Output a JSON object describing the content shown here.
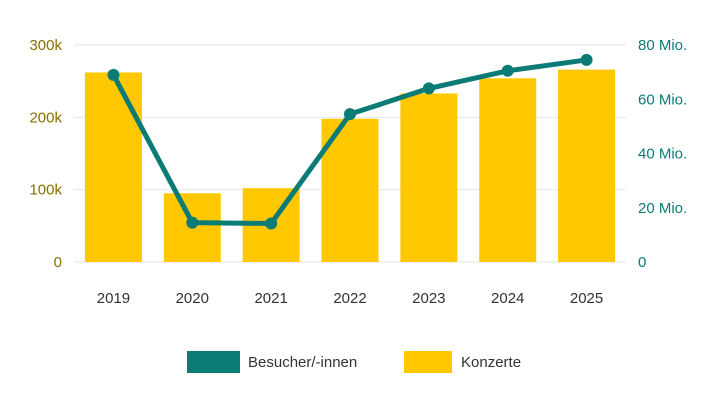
{
  "colors": {
    "bars": "#ffc800",
    "line": "#0b7b75",
    "left_axis_text": "#8a6d00",
    "right_axis_text": "#0b7b75",
    "grid": "#e6e6e6"
  },
  "chart_data": {
    "type": "bar",
    "categories": [
      "2019",
      "2020",
      "2021",
      "2022",
      "2023",
      "2024",
      "2025"
    ],
    "grid": true,
    "legend_position": "bottom",
    "series": [
      {
        "name": "Konzerte",
        "type": "bar",
        "axis": "left",
        "values": [
          262000,
          95000,
          102000,
          198000,
          233000,
          254000,
          266000
        ]
      },
      {
        "name": "Besucher/-innen",
        "type": "line",
        "axis": "right",
        "values": [
          69000000,
          14500000,
          14200000,
          54500000,
          64000000,
          70500000,
          74500000
        ]
      }
    ],
    "y_left": {
      "lim": [
        0,
        300000
      ],
      "ticks": [
        0,
        100000,
        200000,
        300000
      ],
      "tick_labels": [
        "0",
        "100k",
        "200k",
        "300k"
      ]
    },
    "y_right": {
      "lim": [
        0,
        80000000
      ],
      "ticks": [
        0,
        20000000,
        40000000,
        60000000,
        80000000
      ],
      "tick_labels": [
        "0",
        "20 Mio.",
        "40 Mio.",
        "60 Mio.",
        "80 Mio."
      ]
    },
    "legend": [
      {
        "label": "Besucher/-innen",
        "series": "Besucher/-innen"
      },
      {
        "label": "Konzerte",
        "series": "Konzerte"
      }
    ]
  }
}
